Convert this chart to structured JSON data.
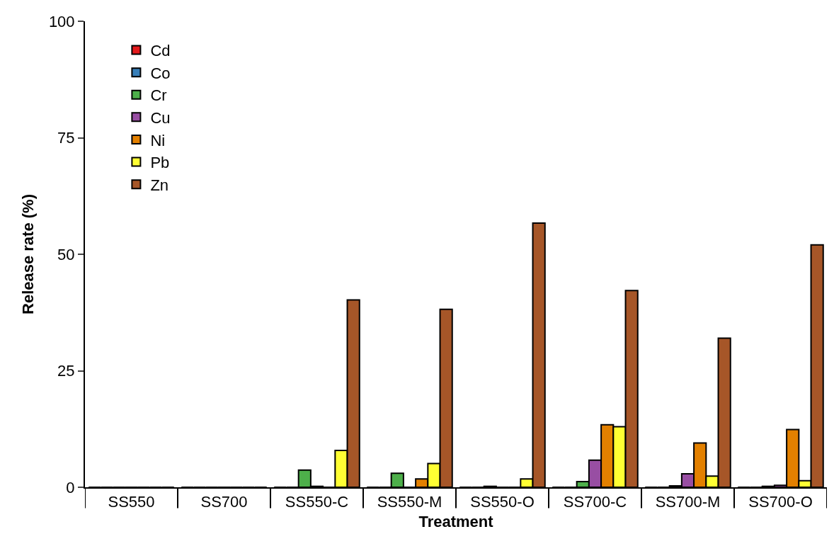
{
  "chart_data": {
    "type": "bar",
    "xlabel": "Treatment",
    "ylabel": "Release rate (%)",
    "categories": [
      "SS550",
      "SS700",
      "SS550-C",
      "SS550-M",
      "SS550-O",
      "SS700-C",
      "SS700-M",
      "SS700-O"
    ],
    "series": [
      {
        "name": "Cd",
        "color": "#e41a1c",
        "values": [
          0,
          0,
          0,
          0,
          0,
          0,
          0,
          0
        ]
      },
      {
        "name": "Co",
        "color": "#377eb8",
        "values": [
          0,
          0,
          0,
          0,
          0,
          0,
          0,
          0
        ]
      },
      {
        "name": "Cr",
        "color": "#4daf4a",
        "values": [
          0,
          0,
          3.7,
          3.0,
          0.2,
          1.2,
          0.3,
          0.2
        ]
      },
      {
        "name": "Cu",
        "color": "#984ea3",
        "values": [
          0,
          0,
          0.2,
          0,
          0,
          5.8,
          2.9,
          0.4
        ]
      },
      {
        "name": "Ni",
        "color": "#e38000",
        "values": [
          0,
          0,
          0,
          1.8,
          0,
          13.4,
          9.5,
          12.4
        ]
      },
      {
        "name": "Pb",
        "color": "#ffff33",
        "values": [
          0,
          0,
          7.9,
          5.1,
          1.8,
          13.0,
          2.4,
          1.4
        ]
      },
      {
        "name": "Zn",
        "color": "#a65628",
        "values": [
          0,
          0,
          40.2,
          38.2,
          56.7,
          42.2,
          32.0,
          52.0
        ]
      }
    ],
    "ylim": [
      0,
      100
    ],
    "yticks": [
      0,
      25,
      50,
      75,
      100
    ],
    "legend": "top left"
  }
}
